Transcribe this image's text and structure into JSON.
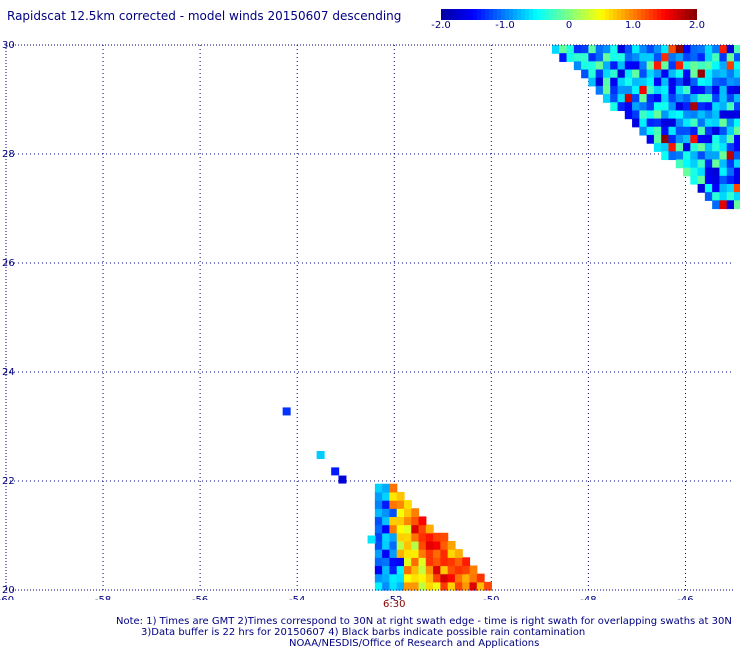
{
  "title": "Rapidscat 12.5km corrected - model winds 20150607 descending",
  "colorbar": {
    "ticks": [
      {
        "label": "-2.0",
        "value": -2.0
      },
      {
        "label": "-1.0",
        "value": -1.0
      },
      {
        "label": "0",
        "value": 0
      },
      {
        "label": "1.0",
        "value": 1.0
      },
      {
        "label": "2.0",
        "value": 2.0
      }
    ],
    "range": [
      -2.0,
      2.0
    ],
    "colors": [
      "#0000a0",
      "#0000ff",
      "#0080ff",
      "#00ffff",
      "#80ff80",
      "#ffff00",
      "#ff8000",
      "#ff0000",
      "#800000"
    ]
  },
  "chart_data": {
    "type": "heatmap",
    "xlim": [
      -60,
      -45
    ],
    "ylim": [
      20,
      30
    ],
    "x_ticks": [
      -60,
      -58,
      -56,
      -54,
      -52,
      -50,
      -48,
      -46
    ],
    "x_tick_labels": [
      "-60",
      "-58",
      "-56",
      "-54",
      "-52",
      "-50",
      "-48",
      "-46"
    ],
    "y_ticks": [
      20,
      22,
      24,
      26,
      28,
      30
    ],
    "y_tick_labels": [
      "20",
      "22",
      "24",
      "26",
      "28",
      "30"
    ],
    "grid": true,
    "cell_size_deg": 0.15,
    "isolated_points": [
      {
        "lon": -54.3,
        "lat": 23.2,
        "value": -1.3
      },
      {
        "lon": -53.6,
        "lat": 22.4,
        "value": -0.7
      },
      {
        "lon": -53.3,
        "lat": 22.1,
        "value": -1.4
      },
      {
        "lon": -53.15,
        "lat": 21.95,
        "value": -1.7
      },
      {
        "lon": -52.55,
        "lat": 20.85,
        "value": -0.6
      }
    ],
    "swaths": [
      {
        "region": "northeast",
        "lon_range": [
          -48.9,
          -45
        ],
        "lat_range": [
          27.0,
          30
        ],
        "mean_value": -0.9
      },
      {
        "region": "south",
        "lon_range": [
          -52.4,
          -50.1
        ],
        "lat_range": [
          20.0,
          21.8
        ],
        "mean_value": 0.4
      }
    ]
  },
  "time_label": "6:30",
  "notes": [
    "Note: 1) Times are GMT 2)Times correspond to 30N at right swath edge - time is right swath for overlapping swaths at 30N",
    "3)Data buffer is 22 hrs for 20150607 4) Black barbs indicate possible rain contamination",
    "NOAA/NESDIS/Office of Research and Applications"
  ]
}
